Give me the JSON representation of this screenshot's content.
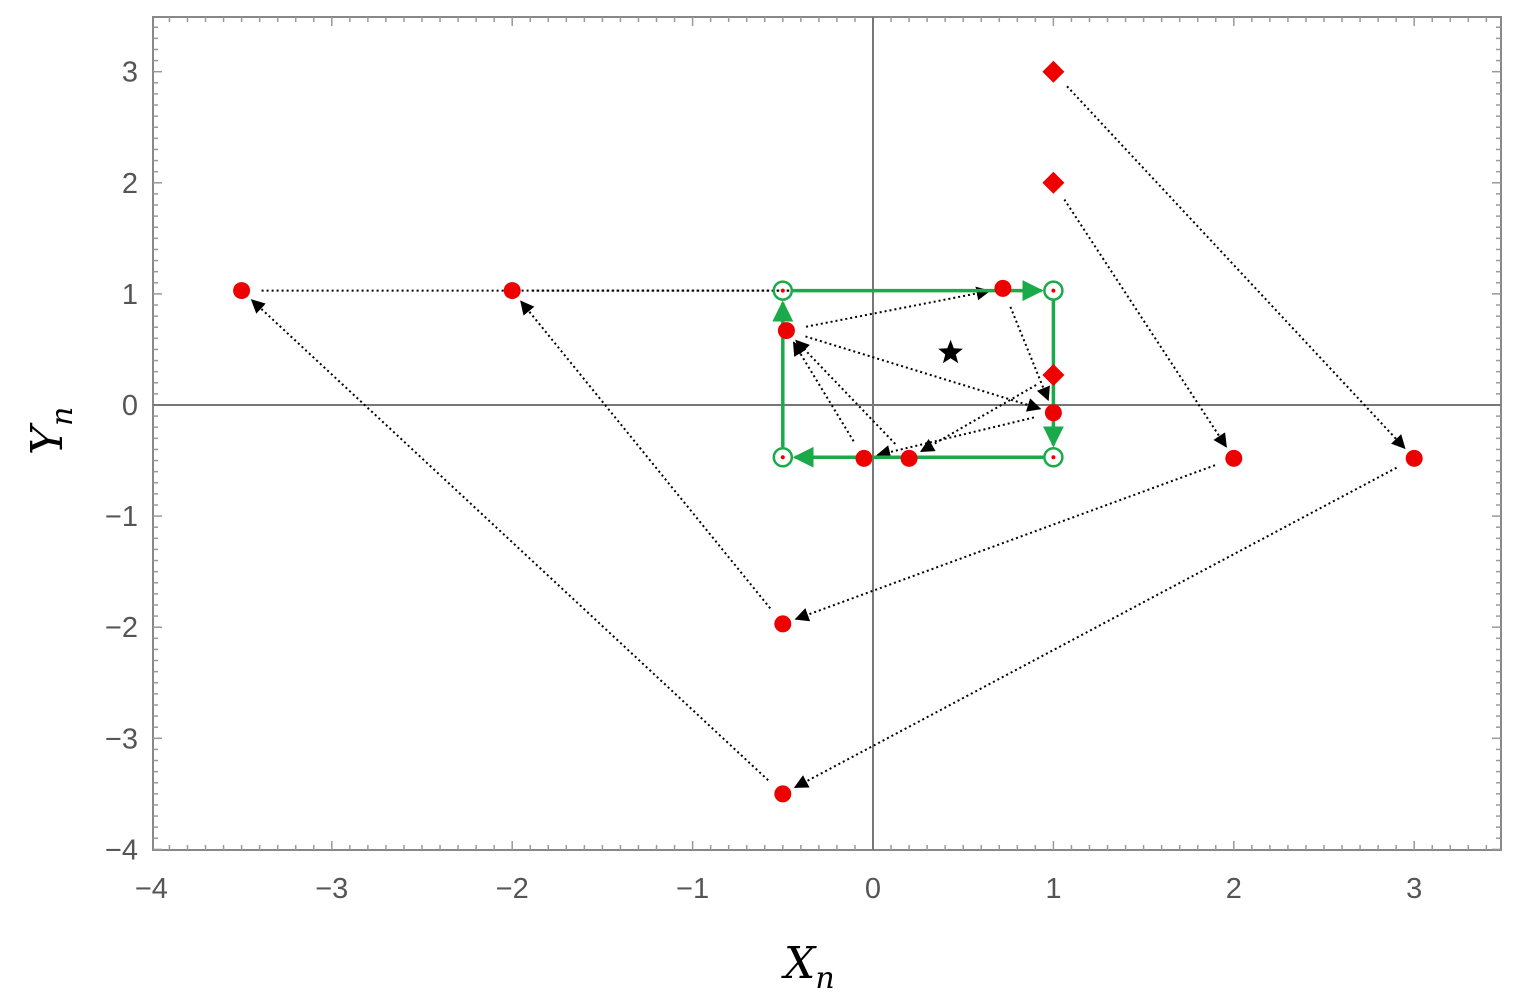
{
  "chart_data": {
    "type": "scatter",
    "title": "",
    "xlabel": "X",
    "xlabel_sub": "n",
    "ylabel": "Y",
    "ylabel_sub": "n",
    "xlim": [
      -4,
      3.5
    ],
    "ylim": [
      -4,
      3.5
    ],
    "xticks": [
      -4,
      -3,
      -2,
      -1,
      0,
      1,
      2,
      3
    ],
    "yticks": [
      -4,
      -3,
      -2,
      -1,
      0,
      1,
      2,
      3
    ],
    "xtick_labels": [
      "−4",
      "−3",
      "−2",
      "−1",
      "0",
      "1",
      "2",
      "3"
    ],
    "ytick_labels": [
      "−4",
      "−3",
      "−2",
      "−1",
      "0",
      "1",
      "2",
      "3"
    ],
    "grid": false,
    "colors": {
      "points": "#ee0000",
      "cycle": "#1aaa4a",
      "arrows": "#000000",
      "frame": "#888888",
      "axes": "#777777"
    },
    "initial_points": [
      [
        1,
        3
      ],
      [
        1,
        2
      ],
      [
        1,
        0.27
      ]
    ],
    "points": [
      [
        -3.5,
        1.03
      ],
      [
        -2,
        1.03
      ],
      [
        0.72,
        1.05
      ],
      [
        -0.48,
        0.67
      ],
      [
        1,
        -0.07
      ],
      [
        -0.05,
        -0.48
      ],
      [
        0.2,
        -0.48
      ],
      [
        2,
        -0.48
      ],
      [
        3,
        -0.48
      ],
      [
        -0.5,
        -1.97
      ],
      [
        -0.5,
        -3.5
      ]
    ],
    "cycle_points": [
      [
        -0.5,
        1.03
      ],
      [
        1,
        1.03
      ],
      [
        1,
        -0.47
      ],
      [
        -0.5,
        -0.47
      ]
    ],
    "fixed_point": [
      0.43,
      0.47
    ],
    "trajectories": [
      [
        [
          1,
          3
        ],
        [
          3,
          -0.48
        ],
        [
          -0.5,
          -3.5
        ],
        [
          -3.5,
          1.03
        ],
        [
          1,
          1.03
        ]
      ],
      [
        [
          1,
          2
        ],
        [
          2,
          -0.48
        ],
        [
          -0.5,
          -1.97
        ],
        [
          -2,
          1.03
        ],
        [
          1,
          1.03
        ]
      ],
      [
        [
          1,
          0.27
        ],
        [
          0.2,
          -0.48
        ],
        [
          -0.48,
          0.67
        ],
        [
          1,
          -0.07
        ],
        [
          -0.05,
          -0.48
        ],
        [
          -0.48,
          0.67
        ],
        [
          0.72,
          1.05
        ],
        [
          1,
          -0.07
        ]
      ]
    ]
  }
}
